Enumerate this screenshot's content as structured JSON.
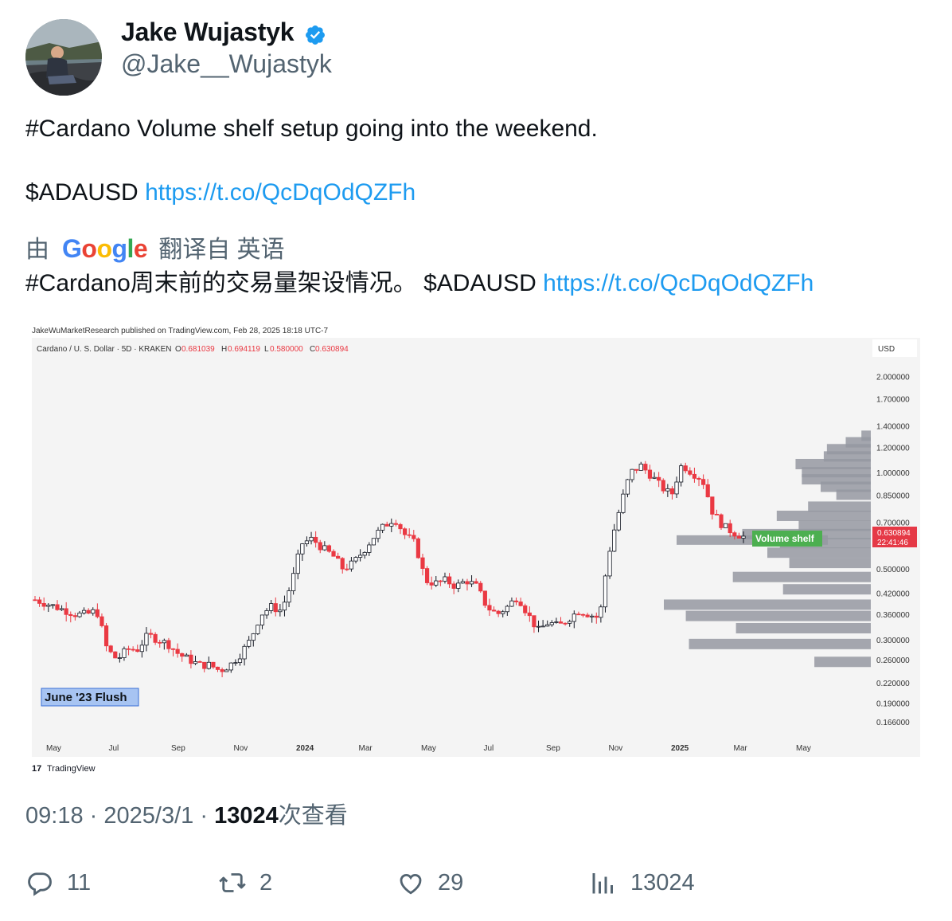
{
  "author": {
    "name": "Jake Wujastyk",
    "handle": "@Jake__Wujastyk"
  },
  "tweet": {
    "line1": "#Cardano Volume shelf setup going into the weekend.",
    "ticker": "$ADAUSD",
    "link": "https://t.co/QcDqOdQZFh"
  },
  "translation": {
    "by": "由",
    "google": "Google",
    "from": "翻译自 英语",
    "text": "#Cardano周末前的交易量架设情况。 $ADAUSD",
    "link": "https://t.co/QcDqOdQZFh"
  },
  "chart": {
    "publisher": "JakeWuMarketResearch published on TradingView.com, Feb 28, 2025 18:18 UTC-7",
    "symbol": "Cardano / U. S. Dollar · 5D · KRAKEN",
    "ohlc": {
      "o_label": "O",
      "o": "0.681039",
      "h_label": "H",
      "h": "0.694119",
      "l_label": "L",
      "l": "0.580000",
      "c_label": "C",
      "c": "0.630894"
    },
    "currency": "USD",
    "price_labels": [
      "2.000000",
      "1.700000",
      "1.400000",
      "1.200000",
      "1.000000",
      "0.850000",
      "0.700000",
      "0.500000",
      "0.420000",
      "0.360000",
      "0.300000",
      "0.260000",
      "0.220000",
      "0.190000",
      "0.166000"
    ],
    "last_price": "0.630894",
    "countdown": "22:41:46",
    "time_labels": [
      "May",
      "Jul",
      "Sep",
      "Nov",
      "2024",
      "Mar",
      "May",
      "Jul",
      "Sep",
      "Nov",
      "2025",
      "Mar",
      "May"
    ],
    "annotation_flush": "June '23 Flush",
    "annotation_shelf": "Volume shelf",
    "watermark": "TradingView",
    "colors": {
      "up": "#ffffff",
      "down": "#ea3943",
      "profile": "#9598a1",
      "label_blue": "#a7c4f2",
      "label_green": "#4caf50"
    }
  },
  "chart_data": {
    "type": "candlestick",
    "title": "Cardano / U. S. Dollar · 5D · KRAKEN",
    "ylabel": "USD",
    "log_scale": true,
    "ylim": [
      0.155,
      2.3
    ],
    "x_ticks": [
      "May",
      "Jul",
      "Sep",
      "Nov",
      "2024",
      "Mar",
      "May",
      "Jul",
      "Sep",
      "Nov",
      "2025",
      "Mar",
      "May"
    ],
    "close_path": [
      0.4,
      0.39,
      0.38,
      0.37,
      0.36,
      0.36,
      0.37,
      0.28,
      0.26,
      0.28,
      0.28,
      0.31,
      0.3,
      0.29,
      0.27,
      0.26,
      0.25,
      0.25,
      0.24,
      0.25,
      0.27,
      0.3,
      0.36,
      0.38,
      0.37,
      0.45,
      0.6,
      0.62,
      0.58,
      0.55,
      0.5,
      0.52,
      0.57,
      0.63,
      0.68,
      0.72,
      0.64,
      0.6,
      0.46,
      0.45,
      0.46,
      0.44,
      0.46,
      0.44,
      0.38,
      0.36,
      0.38,
      0.41,
      0.36,
      0.32,
      0.34,
      0.33,
      0.35,
      0.37,
      0.36,
      0.35,
      0.58,
      0.78,
      1.0,
      1.05,
      0.98,
      0.9,
      0.85,
      1.06,
      1.0,
      0.95,
      0.75,
      0.68,
      0.65,
      0.63
    ],
    "volume_profile": [
      {
        "price": 1.3,
        "weight": 0.03
      },
      {
        "price": 1.24,
        "weight": 0.08
      },
      {
        "price": 1.18,
        "weight": 0.14
      },
      {
        "price": 1.12,
        "weight": 0.15
      },
      {
        "price": 1.06,
        "weight": 0.24
      },
      {
        "price": 1.0,
        "weight": 0.22
      },
      {
        "price": 0.95,
        "weight": 0.22
      },
      {
        "price": 0.9,
        "weight": 0.16
      },
      {
        "price": 0.85,
        "weight": 0.11
      },
      {
        "price": 0.78,
        "weight": 0.2
      },
      {
        "price": 0.73,
        "weight": 0.3
      },
      {
        "price": 0.68,
        "weight": 0.23
      },
      {
        "price": 0.64,
        "weight": 0.41
      },
      {
        "price": 0.6,
        "weight": 0.29
      },
      {
        "price": 0.56,
        "weight": 0.33
      },
      {
        "price": 0.52,
        "weight": 0.26
      },
      {
        "price": 0.47,
        "weight": 0.44
      },
      {
        "price": 0.43,
        "weight": 0.28
      },
      {
        "price": 0.385,
        "weight": 0.66
      },
      {
        "price": 0.355,
        "weight": 0.59
      },
      {
        "price": 0.325,
        "weight": 0.43
      },
      {
        "price": 0.29,
        "weight": 0.58
      },
      {
        "price": 0.255,
        "weight": 0.18
      }
    ]
  },
  "footer": {
    "time": "09:18",
    "sep1": "·",
    "date": "2025/3/1",
    "sep2": "·",
    "views": "13024",
    "views_label": "次查看"
  },
  "actions": {
    "replies": "11",
    "reposts": "2",
    "likes": "29",
    "views": "13024"
  }
}
